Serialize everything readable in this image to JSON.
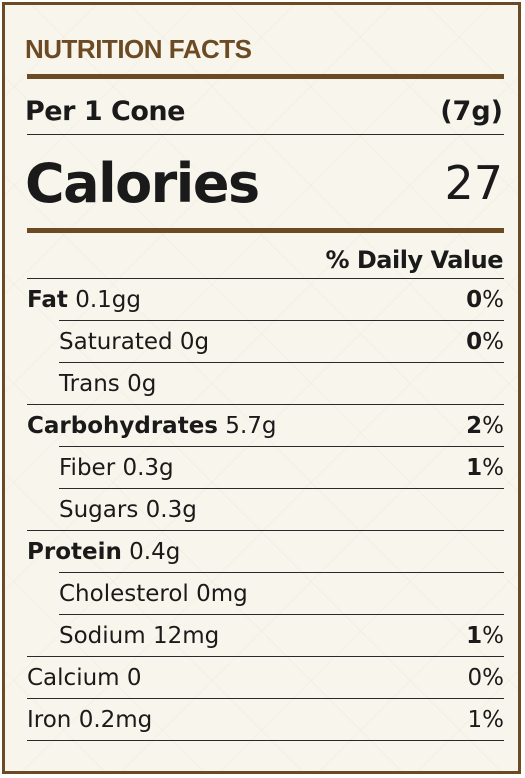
{
  "title": "NUTRITION FACTS",
  "serving": {
    "label": "Per 1 Cone",
    "amount": "(7g)"
  },
  "calories": {
    "label": "Calories",
    "value": "27"
  },
  "daily_value_header": "% Daily Value",
  "rows": [
    {
      "name": "Fat",
      "amount": " 0.1gg",
      "num": "0",
      "unit": "%"
    },
    {
      "name": "Saturated 0g",
      "num": "0",
      "unit": "%"
    },
    {
      "name": "Trans 0g"
    },
    {
      "name": "Carbohydrates",
      "amount": " 5.7g",
      "num": "2",
      "unit": "%"
    },
    {
      "name": "Fiber 0.3g",
      "num": "1",
      "unit": "%"
    },
    {
      "name": "Sugars 0.3g"
    },
    {
      "name": "Protein",
      "amount": " 0.4g"
    },
    {
      "name": "Cholesterol 0mg"
    },
    {
      "name": "Sodium 12mg",
      "num": "1",
      "unit": "%"
    },
    {
      "name": "Calcium 0",
      "num": "0",
      "unit": "%"
    },
    {
      "name": "Iron 0.2mg",
      "num": "1",
      "unit": "%"
    }
  ],
  "colors": {
    "accent": "#6b4a24",
    "background": "#f8f5ec",
    "text": "#1a1a1a"
  }
}
